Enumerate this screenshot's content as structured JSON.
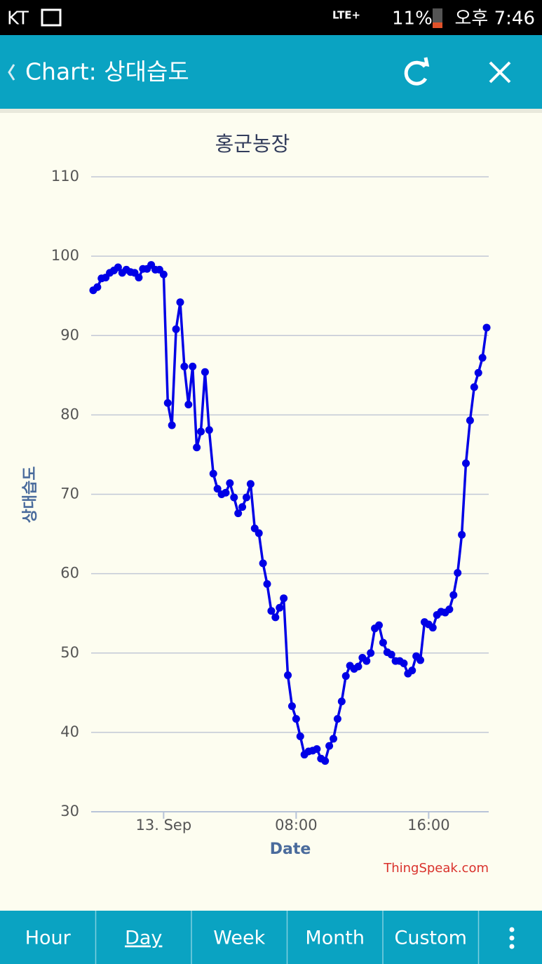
{
  "status_bar": {
    "carrier": "KT",
    "network": "LTE+",
    "battery": "11%",
    "time": "오후 7:46"
  },
  "app_bar": {
    "title": "Chart: 상대습도"
  },
  "chart_data": {
    "type": "line",
    "title": "홍군농장",
    "x_label": "Date",
    "y_label": "상대습도",
    "credit": "ThingSpeak.com",
    "categories": [
      null,
      null,
      null,
      null,
      null,
      null,
      null,
      null,
      null,
      null,
      null,
      null,
      null,
      null,
      null,
      null,
      null,
      "13. Sep",
      null,
      null,
      null,
      null,
      null,
      null,
      null,
      null,
      null,
      null,
      null,
      null,
      null,
      null,
      null,
      null,
      null,
      null,
      null,
      null,
      null,
      null,
      null,
      null,
      null,
      null,
      null,
      null,
      null,
      null,
      null,
      "08:00",
      null,
      null,
      null,
      null,
      null,
      null,
      null,
      null,
      null,
      null,
      null,
      null,
      null,
      null,
      null,
      null,
      null,
      null,
      null,
      null,
      null,
      null,
      null,
      null,
      null,
      null,
      null,
      null,
      null,
      null,
      null,
      "16:00",
      null,
      null,
      null,
      null,
      null,
      null,
      null,
      null,
      null,
      null,
      null,
      null,
      null,
      null
    ],
    "series": [
      {
        "name": "상대습도",
        "color": "#0000e6",
        "values": [
          95.7,
          96.1,
          97.2,
          97.3,
          97.9,
          98.2,
          98.6,
          97.9,
          98.3,
          98.0,
          97.9,
          97.3,
          98.4,
          98.4,
          98.9,
          98.3,
          98.3,
          97.7,
          81.5,
          78.7,
          90.8,
          94.2,
          86.1,
          81.3,
          86.1,
          75.9,
          77.9,
          85.4,
          78.1,
          72.6,
          70.7,
          70.0,
          70.2,
          71.4,
          69.6,
          67.6,
          68.4,
          69.6,
          71.3,
          65.7,
          65.1,
          61.3,
          58.7,
          55.3,
          54.5,
          55.7,
          56.9,
          47.2,
          43.3,
          41.7,
          39.5,
          37.2,
          37.6,
          37.7,
          37.9,
          36.7,
          36.4,
          38.3,
          39.2,
          41.7,
          43.9,
          47.1,
          48.4,
          48.0,
          48.3,
          49.4,
          49.0,
          50.0,
          53.1,
          53.5,
          51.3,
          50.1,
          49.8,
          49.0,
          49.0,
          48.7,
          47.4,
          47.8,
          49.6,
          49.1,
          53.9,
          53.6,
          53.2,
          54.8,
          55.2,
          55.1,
          55.5,
          57.3,
          60.1,
          64.9,
          73.9,
          79.3,
          83.5,
          85.3,
          87.2,
          91.0
        ]
      }
    ],
    "ylim": [
      30,
      110
    ],
    "yticks": [
      30,
      40,
      50,
      60,
      70,
      80,
      90,
      100,
      110
    ],
    "grid": true,
    "markers": true
  },
  "tabs": [
    "Hour",
    "Day",
    "Week",
    "Month",
    "Custom"
  ],
  "active_tab": 1
}
